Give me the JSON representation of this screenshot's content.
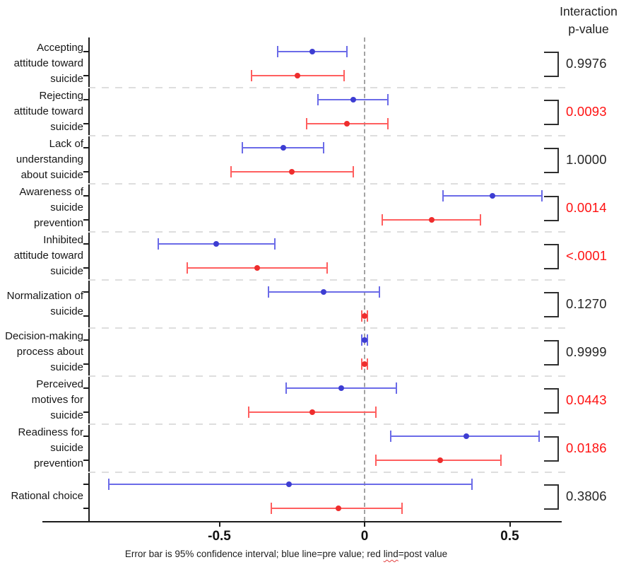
{
  "header": {
    "title": "Interaction\np-value"
  },
  "caption": {
    "pre": "Error bar is 95% confidence interval; blue line=pre value; red ",
    "typo_word": "lind",
    "post": "=post value"
  },
  "chart_data": {
    "type": "forest-errorbar",
    "title": "Interaction p-value forest plot (pre vs post 95% CI by subscale)",
    "x_axis": {
      "ticks": [
        -0.5,
        0,
        0.5
      ],
      "tick_labels": [
        "-0.5",
        "0",
        "0.5"
      ],
      "range": [
        -0.95,
        0.68
      ]
    },
    "zero_reference": 0,
    "legend": {
      "pre": "blue line=pre value",
      "post": "red lind=post value",
      "note": "Error bar is 95% confidence interval"
    },
    "colors": {
      "pre_line": "#6b6be8",
      "pre_dot": "#3d3dd2",
      "post_line": "#ff5f5f",
      "post_dot": "#ee2d2d",
      "sig_p": "#ff1212",
      "normal_p": "#262626",
      "axis": "#1c1c1c",
      "zero_line": "#a3a3a3",
      "separator": "#dedede",
      "bracket": "#2f2f2f"
    },
    "groups": [
      {
        "label": "Accepting\nattitude toward\nsuicide",
        "pre": {
          "est": -0.18,
          "lo": -0.3,
          "hi": -0.06
        },
        "post": {
          "est": -0.23,
          "lo": -0.39,
          "hi": -0.07
        },
        "p": "0.9976",
        "sig": false
      },
      {
        "label": "Rejecting\nattitude toward\nsuicide",
        "pre": {
          "est": -0.04,
          "lo": -0.16,
          "hi": 0.08
        },
        "post": {
          "est": -0.06,
          "lo": -0.2,
          "hi": 0.08
        },
        "p": "0.0093",
        "sig": true
      },
      {
        "label": "Lack of\nunderstanding\nabout suicide",
        "pre": {
          "est": -0.28,
          "lo": -0.42,
          "hi": -0.14
        },
        "post": {
          "est": -0.25,
          "lo": -0.46,
          "hi": -0.04
        },
        "p": "1.0000",
        "sig": false
      },
      {
        "label": "Awareness of\nsuicide\nprevention",
        "pre": {
          "est": 0.44,
          "lo": 0.27,
          "hi": 0.61
        },
        "post": {
          "est": 0.23,
          "lo": 0.06,
          "hi": 0.4
        },
        "p": "0.0014",
        "sig": true
      },
      {
        "label": "Inhibited\nattitude toward\nsuicide",
        "pre": {
          "est": -0.51,
          "lo": -0.71,
          "hi": -0.31
        },
        "post": {
          "est": -0.37,
          "lo": -0.61,
          "hi": -0.13
        },
        "p": "<.0001",
        "sig": true
      },
      {
        "label": "Normalization of\nsuicide",
        "pre": {
          "est": -0.14,
          "lo": -0.33,
          "hi": 0.05
        },
        "post": {
          "est": 0.0,
          "lo": -0.01,
          "hi": 0.01
        },
        "p": "0.1270",
        "sig": false
      },
      {
        "label": "Decision-making\nprocess about\nsuicide",
        "pre": {
          "est": 0.0,
          "lo": -0.01,
          "hi": 0.01
        },
        "post": {
          "est": 0.0,
          "lo": -0.01,
          "hi": 0.01
        },
        "p": "0.9999",
        "sig": false
      },
      {
        "label": "Perceived\nmotives for\nsuicide",
        "pre": {
          "est": -0.08,
          "lo": -0.27,
          "hi": 0.11
        },
        "post": {
          "est": -0.18,
          "lo": -0.4,
          "hi": 0.04
        },
        "p": "0.0443",
        "sig": true
      },
      {
        "label": "Readiness for\nsuicide\nprevention",
        "pre": {
          "est": 0.35,
          "lo": 0.09,
          "hi": 0.6
        },
        "post": {
          "est": 0.26,
          "lo": 0.04,
          "hi": 0.47
        },
        "p": "0.0186",
        "sig": true
      },
      {
        "label": "Rational choice",
        "pre": {
          "est": -0.26,
          "lo": -0.88,
          "hi": 0.37
        },
        "post": {
          "est": -0.09,
          "lo": -0.32,
          "hi": 0.13
        },
        "p": "0.3806",
        "sig": false
      }
    ]
  }
}
